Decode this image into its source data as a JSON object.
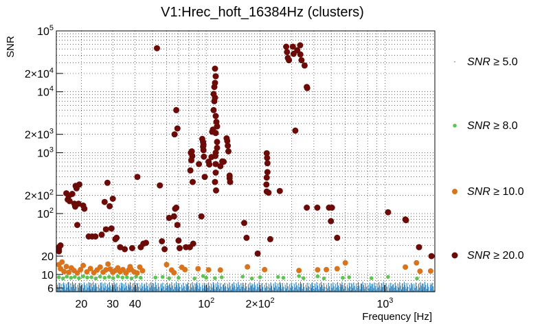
{
  "chart_data": {
    "type": "scatter",
    "title": "V1:Hrec_hoft_16384Hz (clusters)",
    "xlabel": "Frequency [Hz]",
    "ylabel": "SNR",
    "xscale": "log",
    "yscale": "log",
    "xlim": [
      14.5,
      1900
    ],
    "ylim": [
      5.2,
      100000
    ],
    "grid": true,
    "legend_position": "right",
    "x_ticks": [
      {
        "value": 20,
        "label": "20"
      },
      {
        "value": 30,
        "label": "30"
      },
      {
        "value": 40,
        "label": "40"
      },
      {
        "value": 100,
        "label": "10",
        "sup": "2"
      },
      {
        "value": 200,
        "label": "2×10",
        "sup": "2"
      },
      {
        "value": 1000,
        "label": "10",
        "sup": "3"
      }
    ],
    "y_ticks": [
      {
        "value": 6,
        "label": "6"
      },
      {
        "value": 10,
        "label": "10"
      },
      {
        "value": 20,
        "label": "20"
      },
      {
        "value": 100,
        "label": "10",
        "sup": "2"
      },
      {
        "value": 200,
        "label": "2×10",
        "sup": "2"
      },
      {
        "value": 1000,
        "label": "10",
        "sup": "3"
      },
      {
        "value": 2000,
        "label": "2×10",
        "sup": "3"
      },
      {
        "value": 10000,
        "label": "10",
        "sup": "4"
      },
      {
        "value": 20000,
        "label": "2×10",
        "sup": "4"
      },
      {
        "value": 100000,
        "label": "10",
        "sup": "5"
      }
    ],
    "series": [
      {
        "name": "SNR ≥ 5.0",
        "label_var": "SNR",
        "label_rel": "≥ 5.0",
        "color": "#1f77b4",
        "marker": "dot",
        "note_density": "dense vertical lines SNR 5-8 across all frequencies",
        "points": [
          [
            15.2,
            7.2
          ],
          [
            16.1,
            6.8
          ],
          [
            17.0,
            7.5
          ],
          [
            18.2,
            6.9
          ],
          [
            19.5,
            7.1
          ],
          [
            21.0,
            6.7
          ],
          [
            22.4,
            7.3
          ],
          [
            24.0,
            6.9
          ],
          [
            26.0,
            7.4
          ],
          [
            28.0,
            6.8
          ],
          [
            31.0,
            7.0
          ],
          [
            34.0,
            7.2
          ],
          [
            37.0,
            6.7
          ],
          [
            41.0,
            7.1
          ],
          [
            45.0,
            6.9
          ],
          [
            50.0,
            7.3
          ],
          [
            56.0,
            7.0
          ],
          [
            62.0,
            6.8
          ],
          [
            70.0,
            7.2
          ],
          [
            78.0,
            6.9
          ],
          [
            88.0,
            7.1
          ],
          [
            98.0,
            6.8
          ],
          [
            110.0,
            7.2
          ],
          [
            125.0,
            6.9
          ],
          [
            140.0,
            7.0
          ],
          [
            160.0,
            7.3
          ],
          [
            180.0,
            6.8
          ],
          [
            205.0,
            7.1
          ],
          [
            230.0,
            6.9
          ],
          [
            260.0,
            7.2
          ],
          [
            300.0,
            6.8
          ],
          [
            340.0,
            7.0
          ],
          [
            390.0,
            7.3
          ],
          [
            440.0,
            6.9
          ],
          [
            500.0,
            7.1
          ],
          [
            570.0,
            6.8
          ],
          [
            650.0,
            7.2
          ],
          [
            740.0,
            6.9
          ],
          [
            840.0,
            7.0
          ],
          [
            960.0,
            7.2
          ],
          [
            1100.0,
            6.8
          ],
          [
            1250.0,
            7.1
          ],
          [
            1420.0,
            6.9
          ],
          [
            1620.0,
            7.0
          ],
          [
            1820.0,
            6.9
          ]
        ]
      },
      {
        "name": "SNR ≥ 8.0",
        "label_var": "SNR",
        "label_rel": "≥ 8.0",
        "color": "#5ec451",
        "marker": "small-circle",
        "points": [
          [
            15.0,
            9.0
          ],
          [
            15.8,
            8.6
          ],
          [
            16.6,
            9.2
          ],
          [
            17.5,
            8.8
          ],
          [
            18.4,
            9.1
          ],
          [
            19.4,
            8.7
          ],
          [
            20.5,
            9.3
          ],
          [
            21.6,
            8.9
          ],
          [
            22.8,
            9.0
          ],
          [
            24.1,
            8.6
          ],
          [
            25.5,
            9.2
          ],
          [
            27.0,
            8.8
          ],
          [
            28.6,
            9.1
          ],
          [
            30.2,
            8.7
          ],
          [
            32.0,
            9.3
          ],
          [
            34.0,
            8.9
          ],
          [
            36.0,
            9.0
          ],
          [
            38.2,
            8.6
          ],
          [
            40.5,
            9.2
          ],
          [
            43.0,
            8.8
          ],
          [
            52.0,
            8.9
          ],
          [
            57.0,
            9.1
          ],
          [
            62.0,
            8.7
          ],
          [
            70.0,
            8.8
          ],
          [
            86.0,
            8.6
          ],
          [
            96.0,
            9.4
          ],
          [
            100.0,
            8.8
          ],
          [
            112.0,
            8.7
          ],
          [
            122.0,
            9.0
          ],
          [
            160.0,
            9.2
          ],
          [
            180.0,
            8.6
          ],
          [
            200.0,
            9.0
          ],
          [
            252.0,
            9.1
          ],
          [
            270.0,
            8.8
          ],
          [
            330.0,
            9.4
          ],
          [
            350.0,
            8.7
          ],
          [
            420.0,
            9.3
          ],
          [
            455.0,
            8.6
          ],
          [
            580.0,
            8.8
          ],
          [
            630.0,
            9.0
          ],
          [
            840.0,
            8.7
          ],
          [
            1040.0,
            9.1
          ],
          [
            1510.0,
            8.6
          ]
        ]
      },
      {
        "name": "SNR ≥ 10.0",
        "label_var": "SNR",
        "label_rel": "≥ 10.0",
        "color": "#d9731c",
        "marker": "circle",
        "points": [
          [
            15.0,
            14.5
          ],
          [
            15.3,
            12.4
          ],
          [
            15.6,
            16.0
          ],
          [
            16.0,
            11.2
          ],
          [
            16.5,
            13.5
          ],
          [
            17.0,
            10.8
          ],
          [
            17.6,
            12.8
          ],
          [
            18.2,
            11.6
          ],
          [
            19.0,
            10.6
          ],
          [
            19.8,
            12.0
          ],
          [
            20.5,
            14.0
          ],
          [
            21.5,
            11.0
          ],
          [
            22.5,
            12.5
          ],
          [
            23.5,
            10.7
          ],
          [
            24.5,
            11.8
          ],
          [
            25.5,
            13.2
          ],
          [
            26.5,
            10.9
          ],
          [
            27.5,
            11.9
          ],
          [
            28.2,
            14.8
          ],
          [
            29.0,
            12.2
          ],
          [
            30.0,
            10.8
          ],
          [
            31.0,
            11.6
          ],
          [
            32.0,
            12.8
          ],
          [
            33.0,
            11.1
          ],
          [
            34.2,
            12.0
          ],
          [
            35.5,
            10.6
          ],
          [
            36.8,
            11.8
          ],
          [
            37.5,
            13.4
          ],
          [
            38.0,
            12.1
          ],
          [
            39.5,
            11.0
          ],
          [
            41.0,
            10.6
          ],
          [
            42.5,
            13.2
          ],
          [
            44.0,
            11.5
          ],
          [
            60.0,
            14.5
          ],
          [
            64.0,
            11.8
          ],
          [
            66.0,
            10.7
          ],
          [
            73.0,
            13.1
          ],
          [
            76.0,
            12.0
          ],
          [
            90.0,
            12.4
          ],
          [
            103.0,
            11.9
          ],
          [
            120.0,
            11.8
          ],
          [
            170.0,
            13.3
          ],
          [
            212.0,
            12.0
          ],
          [
            330.0,
            11.6
          ],
          [
            420.0,
            11.9
          ],
          [
            470.0,
            12.0
          ],
          [
            540.0,
            12.4
          ],
          [
            600.0,
            15.5
          ],
          [
            1300.0,
            13.2
          ],
          [
            1500.0,
            15.5
          ],
          [
            1570.0,
            11.3
          ],
          [
            1800.0,
            11.4
          ]
        ]
      },
      {
        "name": "SNR ≥ 20.0",
        "label_var": "SNR",
        "label_rel": "≥ 20.0",
        "color": "#6b0a06",
        "marker": "big-circle",
        "points": [
          [
            15.0,
            28
          ],
          [
            15.0,
            26
          ],
          [
            15.0,
            24
          ],
          [
            15.3,
            30
          ],
          [
            16.5,
            215
          ],
          [
            17.0,
            195
          ],
          [
            16.8,
            170
          ],
          [
            17.2,
            160
          ],
          [
            17.8,
            210
          ],
          [
            18.6,
            285
          ],
          [
            18.8,
            260
          ],
          [
            18.3,
            145
          ],
          [
            18.5,
            130
          ],
          [
            19.0,
            65
          ],
          [
            19.5,
            300
          ],
          [
            19.3,
            145
          ],
          [
            20.5,
            135
          ],
          [
            20.8,
            120
          ],
          [
            22.0,
            42
          ],
          [
            23.0,
            42
          ],
          [
            24.0,
            42
          ],
          [
            26.0,
            45
          ],
          [
            27.5,
            55
          ],
          [
            28.0,
            320
          ],
          [
            27.0,
            155
          ],
          [
            28.8,
            132
          ],
          [
            29.5,
            57
          ],
          [
            30.0,
            175
          ],
          [
            31.0,
            38
          ],
          [
            31.5,
            40
          ],
          [
            33.0,
            28
          ],
          [
            35.0,
            26
          ],
          [
            38.5,
            27
          ],
          [
            41.2,
            400
          ],
          [
            43.0,
            28
          ],
          [
            44.5,
            32
          ],
          [
            46.0,
            33
          ],
          [
            53.0,
            52000
          ],
          [
            55.0,
            290
          ],
          [
            56.5,
            35
          ],
          [
            58.5,
            26
          ],
          [
            62.0,
            85
          ],
          [
            66.0,
            90
          ],
          [
            67.0,
            120
          ],
          [
            68.0,
            125
          ],
          [
            68.0,
            5000
          ],
          [
            69.0,
            2500
          ],
          [
            66.5,
            2000
          ],
          [
            69.0,
            65
          ],
          [
            70.0,
            36
          ],
          [
            71.0,
            27
          ],
          [
            77.0,
            28
          ],
          [
            81.0,
            28
          ],
          [
            82.0,
            1000
          ],
          [
            83.0,
            1050
          ],
          [
            83.5,
            880
          ],
          [
            82.5,
            750
          ],
          [
            81.5,
            510
          ],
          [
            84.0,
            330
          ],
          [
            84.5,
            32
          ],
          [
            91.0,
            650
          ],
          [
            95.0,
            1680
          ],
          [
            96.0,
            1490
          ],
          [
            96.5,
            1350
          ],
          [
            96.0,
            1250
          ],
          [
            96.5,
            1100
          ],
          [
            97.0,
            860
          ],
          [
            94.0,
            90
          ],
          [
            98.0,
            400
          ],
          [
            103.0,
            710
          ],
          [
            104.0,
            640
          ],
          [
            107.0,
            850
          ],
          [
            108.0,
            2200
          ],
          [
            109.0,
            2400
          ],
          [
            110.0,
            5000
          ],
          [
            111.0,
            7000
          ],
          [
            112.0,
            8000
          ],
          [
            110.0,
            9200
          ],
          [
            111.0,
            12000
          ],
          [
            112.0,
            14000
          ],
          [
            113.0,
            18000
          ],
          [
            112.0,
            24000
          ],
          [
            113.0,
            4000
          ],
          [
            114.0,
            3200
          ],
          [
            115.0,
            2700
          ],
          [
            113.0,
            2100
          ],
          [
            115.0,
            1500
          ],
          [
            115.0,
            1200
          ],
          [
            113.0,
            1000
          ],
          [
            112.5,
            880
          ],
          [
            113.0,
            650
          ],
          [
            113.0,
            470
          ],
          [
            112.0,
            330
          ],
          [
            113.5,
            240
          ],
          [
            120.0,
            600
          ],
          [
            123.0,
            720
          ],
          [
            125.0,
            710
          ],
          [
            130.0,
            1720
          ],
          [
            131.0,
            1560
          ],
          [
            132.0,
            1300
          ],
          [
            133.0,
            1050
          ],
          [
            135.0,
            420
          ],
          [
            135.0,
            380
          ],
          [
            136.0,
            330
          ],
          [
            163.0,
            70
          ],
          [
            168.0,
            40
          ],
          [
            194.0,
            22
          ],
          [
            218.0,
            980
          ],
          [
            219.0,
            820
          ],
          [
            220.0,
            670
          ],
          [
            220.0,
            480
          ],
          [
            218.0,
            390
          ],
          [
            217.0,
            300
          ],
          [
            218.0,
            230
          ],
          [
            223.0,
            220
          ],
          [
            228.0,
            38
          ],
          [
            258.0,
            235
          ],
          [
            280.0,
            55000
          ],
          [
            283.0,
            45000
          ],
          [
            286.0,
            36000
          ],
          [
            290.0,
            33000
          ],
          [
            305.0,
            55000
          ],
          [
            308.0,
            42000
          ],
          [
            315.0,
            2300
          ],
          [
            323.0,
            48000
          ],
          [
            335.0,
            58000
          ],
          [
            336.0,
            41000
          ],
          [
            341.0,
            33000
          ],
          [
            355.0,
            27000
          ],
          [
            365.0,
            12000
          ],
          [
            367.0,
            11500
          ],
          [
            365.0,
            125
          ],
          [
            418.0,
            125
          ],
          [
            486.0,
            125
          ],
          [
            498.0,
            75
          ],
          [
            505.0,
            125
          ],
          [
            540.0,
            40
          ],
          [
            1040.0,
            105
          ],
          [
            1300.0,
            80
          ],
          [
            1310.0,
            78
          ],
          [
            1550.0,
            28
          ],
          [
            1820.0,
            20
          ]
        ]
      }
    ]
  }
}
